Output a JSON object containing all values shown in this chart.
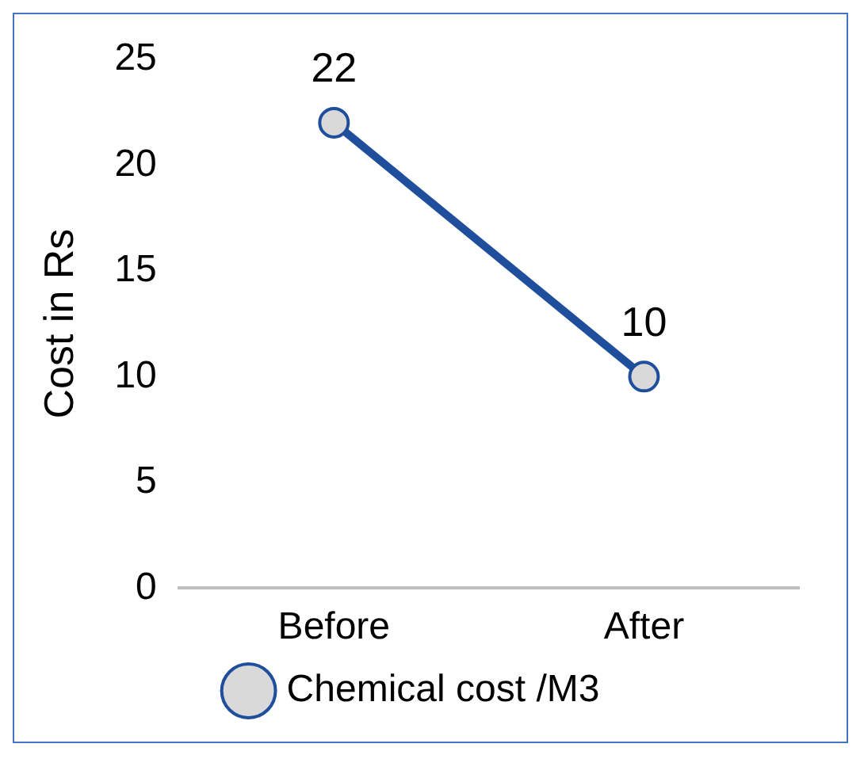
{
  "chart_data": {
    "type": "line",
    "ylabel": "Cost in Rs",
    "categories": [
      "Before",
      "After"
    ],
    "series": [
      {
        "name": "Chemical cost /M3",
        "color": "#1f4e9c",
        "values": [
          22,
          10
        ]
      }
    ],
    "ylim": [
      0,
      25
    ],
    "yticks": [
      0,
      5,
      10,
      15,
      20,
      25
    ],
    "grid": false,
    "data_labels": true,
    "legend": "bottom",
    "marker": "circle",
    "line_style": "solid"
  }
}
